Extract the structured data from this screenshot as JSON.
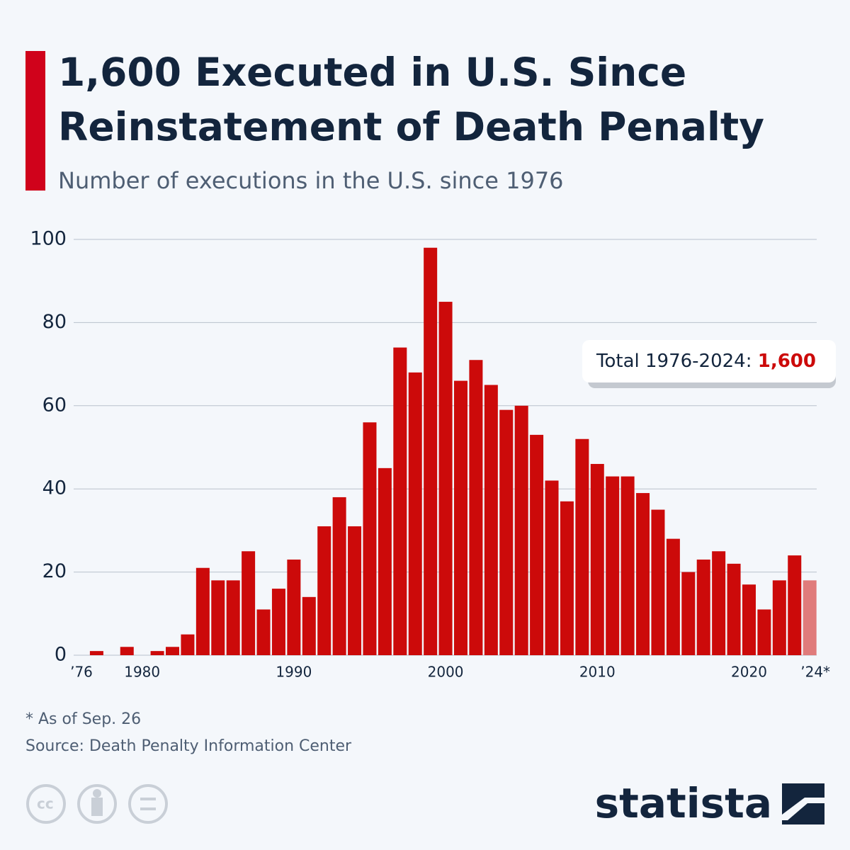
{
  "chart_data": {
    "type": "bar",
    "title": "1,600 Executed in U.S. Since Reinstatement of Death Penalty",
    "subtitle": "Number of executions in the U.S. since 1976",
    "categories": [
      "’76",
      null,
      null,
      null,
      "1980",
      null,
      null,
      null,
      null,
      null,
      null,
      null,
      null,
      null,
      "1990",
      null,
      null,
      null,
      null,
      null,
      null,
      null,
      null,
      null,
      "2000",
      null,
      null,
      null,
      null,
      null,
      null,
      null,
      null,
      null,
      "2010",
      null,
      null,
      null,
      null,
      null,
      null,
      null,
      null,
      null,
      "2020",
      null,
      null,
      null,
      "’24*"
    ],
    "values": [
      0,
      1,
      0,
      2,
      0,
      1,
      2,
      5,
      21,
      18,
      18,
      25,
      11,
      16,
      23,
      14,
      31,
      38,
      31,
      56,
      45,
      74,
      68,
      98,
      85,
      66,
      71,
      65,
      59,
      60,
      53,
      42,
      37,
      52,
      46,
      43,
      43,
      39,
      35,
      28,
      20,
      23,
      25,
      22,
      17,
      11,
      18,
      24,
      18
    ],
    "color": "#cc0a0a",
    "colors": [
      "#cc0a0a",
      "#cc0a0a",
      "#cc0a0a",
      "#cc0a0a",
      "#cc0a0a",
      "#cc0a0a",
      "#cc0a0a",
      "#cc0a0a",
      "#cc0a0a",
      "#cc0a0a",
      "#cc0a0a",
      "#cc0a0a",
      "#cc0a0a",
      "#cc0a0a",
      "#cc0a0a",
      "#cc0a0a",
      "#cc0a0a",
      "#cc0a0a",
      "#cc0a0a",
      "#cc0a0a",
      "#cc0a0a",
      "#cc0a0a",
      "#cc0a0a",
      "#cc0a0a",
      "#cc0a0a",
      "#cc0a0a",
      "#cc0a0a",
      "#cc0a0a",
      "#cc0a0a",
      "#cc0a0a",
      "#cc0a0a",
      "#cc0a0a",
      "#cc0a0a",
      "#cc0a0a",
      "#cc0a0a",
      "#cc0a0a",
      "#cc0a0a",
      "#cc0a0a",
      "#cc0a0a",
      "#cc0a0a",
      "#cc0a0a",
      "#cc0a0a",
      "#cc0a0a",
      "#cc0a0a",
      "#cc0a0a",
      "#cc0a0a",
      "#cc0a0a",
      "#cc0a0a",
      "#e07b7b"
    ],
    "ylim": [
      0,
      100
    ],
    "yticks": [
      0,
      20,
      40,
      60,
      80,
      100
    ],
    "grid": true,
    "annotation": {
      "text": "Total 1976-2024:",
      "value": "1,600"
    },
    "footnote": "* As of Sep. 26",
    "source": "Source: Death Penalty Information Center",
    "logo": "statista"
  }
}
